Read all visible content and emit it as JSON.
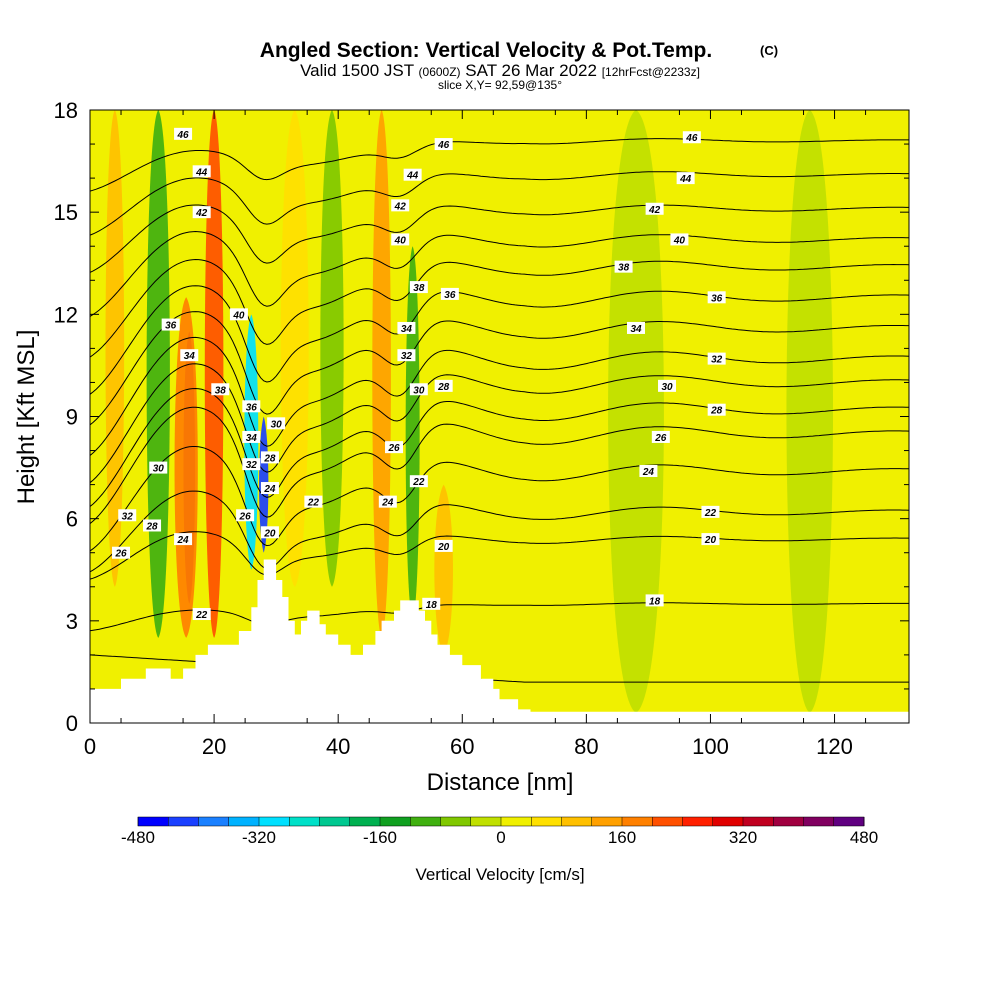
{
  "title": {
    "main": "Angled Section: Vertical Velocity & Pot.Temp.",
    "main_suffix": "(C)",
    "valid_prefix": "Valid 1500 JST",
    "valid_utc": "(0600Z)",
    "valid_date": "SAT 26 Mar 2022",
    "valid_fcst": "[12hrFcst@2233z]",
    "slice": "slice X,Y= 92,59@135°"
  },
  "colors": {
    "frame": "#000000",
    "terrain": "#ffffff",
    "contour": "#000000",
    "colorbar": [
      "#0000ff",
      "#1a40ff",
      "#1a80ff",
      "#00b2ff",
      "#00e0ff",
      "#00e0c8",
      "#00c890",
      "#00b050",
      "#10a020",
      "#40b010",
      "#80c800",
      "#c0e000",
      "#f0f000",
      "#ffe000",
      "#ffc000",
      "#ffa000",
      "#ff8000",
      "#ff5000",
      "#ff2000",
      "#e00000",
      "#c00020",
      "#a00040",
      "#800060",
      "#600080"
    ]
  },
  "chart_data": {
    "type": "heatmap",
    "title": "Angled Section: Vertical Velocity & Pot.Temp.",
    "xlabel": "Distance [nm]",
    "ylabel": "Height [Kft MSL]",
    "xlim": [
      0,
      132
    ],
    "ylim": [
      0,
      18
    ],
    "x_ticks": [
      0,
      20,
      40,
      60,
      80,
      100,
      120
    ],
    "y_ticks": [
      0,
      3,
      6,
      9,
      12,
      15,
      18
    ],
    "colorbar": {
      "label": "Vertical Velocity [cm/s]",
      "ticks": [
        -480,
        -320,
        -160,
        0,
        160,
        320,
        480
      ],
      "min": -480,
      "max": 480,
      "step": 40
    },
    "terrain_kft": [
      [
        0,
        1.0
      ],
      [
        5,
        1.0
      ],
      [
        5,
        1.3
      ],
      [
        9,
        1.3
      ],
      [
        9,
        1.6
      ],
      [
        13,
        1.6
      ],
      [
        13,
        1.3
      ],
      [
        15,
        1.3
      ],
      [
        15,
        1.6
      ],
      [
        17,
        1.6
      ],
      [
        17,
        2.0
      ],
      [
        19,
        2.0
      ],
      [
        19,
        2.3
      ],
      [
        24,
        2.3
      ],
      [
        24,
        2.7
      ],
      [
        26,
        2.7
      ],
      [
        26,
        3.4
      ],
      [
        27,
        3.4
      ],
      [
        27,
        4.2
      ],
      [
        28,
        4.2
      ],
      [
        28,
        4.8
      ],
      [
        30,
        4.8
      ],
      [
        30,
        4.2
      ],
      [
        31,
        4.2
      ],
      [
        31,
        3.7
      ],
      [
        32,
        3.7
      ],
      [
        32,
        3.0
      ],
      [
        33,
        3.0
      ],
      [
        33,
        2.6
      ],
      [
        34,
        2.6
      ],
      [
        34,
        3.0
      ],
      [
        35,
        3.0
      ],
      [
        35,
        3.3
      ],
      [
        37,
        3.3
      ],
      [
        37,
        2.9
      ],
      [
        38,
        2.9
      ],
      [
        38,
        2.6
      ],
      [
        40,
        2.6
      ],
      [
        40,
        2.3
      ],
      [
        42,
        2.3
      ],
      [
        42,
        2.0
      ],
      [
        44,
        2.0
      ],
      [
        44,
        2.3
      ],
      [
        46,
        2.3
      ],
      [
        46,
        2.7
      ],
      [
        47,
        2.7
      ],
      [
        47,
        3.0
      ],
      [
        49,
        3.0
      ],
      [
        49,
        3.3
      ],
      [
        50,
        3.3
      ],
      [
        50,
        3.6
      ],
      [
        53,
        3.6
      ],
      [
        53,
        3.3
      ],
      [
        54,
        3.3
      ],
      [
        54,
        3.0
      ],
      [
        55,
        3.0
      ],
      [
        55,
        2.6
      ],
      [
        56,
        2.6
      ],
      [
        56,
        2.3
      ],
      [
        58,
        2.3
      ],
      [
        58,
        2.0
      ],
      [
        60,
        2.0
      ],
      [
        60,
        1.7
      ],
      [
        63,
        1.7
      ],
      [
        63,
        1.3
      ],
      [
        65,
        1.3
      ],
      [
        65,
        1.0
      ],
      [
        66,
        1.0
      ],
      [
        66,
        0.7
      ],
      [
        69,
        0.7
      ],
      [
        69,
        0.4
      ],
      [
        71,
        0.4
      ],
      [
        71,
        0.33
      ],
      [
        132,
        0.33
      ]
    ],
    "velocity_bands": [
      {
        "x_center": 16,
        "width_nm": 2.5,
        "y_from": 3.5,
        "y_to": 11.5,
        "value_cm_s": 360
      },
      {
        "x_center": 15.5,
        "width_nm": 5,
        "y_from": 2.5,
        "y_to": 12.5,
        "value_cm_s": 160
      },
      {
        "x_center": 20,
        "width_nm": 4,
        "y_from": 2.5,
        "y_to": 18,
        "value_cm_s": 200
      },
      {
        "x_center": 4,
        "width_nm": 4,
        "y_from": 4,
        "y_to": 18,
        "value_cm_s": 80
      },
      {
        "x_center": 11,
        "width_nm": 5,
        "y_from": 2.5,
        "y_to": 18,
        "value_cm_s": -100
      },
      {
        "x_center": 26,
        "width_nm": 3,
        "y_from": 4.5,
        "y_to": 12,
        "value_cm_s": -320
      },
      {
        "x_center": 28,
        "width_nm": 2,
        "y_from": 5,
        "y_to": 9,
        "value_cm_s": -440
      },
      {
        "x_center": 33,
        "width_nm": 6,
        "y_from": 4,
        "y_to": 18,
        "value_cm_s": 60
      },
      {
        "x_center": 39,
        "width_nm": 5,
        "y_from": 4,
        "y_to": 18,
        "value_cm_s": -80
      },
      {
        "x_center": 47,
        "width_nm": 4,
        "y_from": 2.5,
        "y_to": 18,
        "value_cm_s": 120
      },
      {
        "x_center": 52,
        "width_nm": 3,
        "y_from": 3,
        "y_to": 14,
        "value_cm_s": -120
      },
      {
        "x_center": 57,
        "width_nm": 4,
        "y_from": 2,
        "y_to": 7,
        "value_cm_s": 100
      },
      {
        "x_center": 65,
        "width_nm": 8,
        "y_from": 0.5,
        "y_to": 18,
        "value_cm_s": 20
      },
      {
        "x_center": 88,
        "width_nm": 12,
        "y_from": 0.3,
        "y_to": 18,
        "value_cm_s": -20
      },
      {
        "x_center": 104,
        "width_nm": 3,
        "y_from": 0.3,
        "y_to": 18,
        "value_cm_s": 20
      },
      {
        "x_center": 116,
        "width_nm": 10,
        "y_from": 0.3,
        "y_to": 18,
        "value_cm_s": -20
      }
    ],
    "isentropes": [
      {
        "theta": 16,
        "base_kft": 2.0,
        "far_kft": 1.2,
        "amp": 0.0,
        "show_label": false
      },
      {
        "theta": 18,
        "base_kft": 3.0,
        "far_kft": 3.5,
        "amp": 0.3,
        "labels": [
          {
            "x": 55,
            "y": 3.5
          },
          {
            "x": 91,
            "y": 3.6
          }
        ]
      },
      {
        "theta": 20,
        "base_kft": 5.0,
        "far_kft": 5.4,
        "amp": 0.8,
        "labels": [
          {
            "x": 29,
            "y": 5.6
          },
          {
            "x": 57,
            "y": 5.2
          },
          {
            "x": 100,
            "y": 5.4
          }
        ]
      },
      {
        "theta": 22,
        "base_kft": 5.8,
        "far_kft": 6.2,
        "amp": 1.4,
        "labels": [
          {
            "x": 18,
            "y": 3.2
          },
          {
            "x": 36,
            "y": 6.5
          },
          {
            "x": 53,
            "y": 7.1
          },
          {
            "x": 100,
            "y": 6.2
          }
        ]
      },
      {
        "theta": 24,
        "base_kft": 6.8,
        "far_kft": 7.4,
        "amp": 1.8,
        "labels": [
          {
            "x": 15,
            "y": 5.4
          },
          {
            "x": 29,
            "y": 6.9
          },
          {
            "x": 48,
            "y": 6.5
          },
          {
            "x": 90,
            "y": 7.4
          }
        ]
      },
      {
        "theta": 26,
        "base_kft": 7.8,
        "far_kft": 8.5,
        "amp": 2.0,
        "labels": [
          {
            "x": 5,
            "y": 5.0
          },
          {
            "x": 25,
            "y": 6.1
          },
          {
            "x": 49,
            "y": 8.1
          },
          {
            "x": 92,
            "y": 8.4
          }
        ]
      },
      {
        "theta": 28,
        "base_kft": 8.3,
        "far_kft": 9.2,
        "amp": 2.0,
        "labels": [
          {
            "x": 10,
            "y": 5.8
          },
          {
            "x": 29,
            "y": 7.8
          },
          {
            "x": 57,
            "y": 9.9
          },
          {
            "x": 101,
            "y": 9.2
          }
        ]
      },
      {
        "theta": 30,
        "base_kft": 9.0,
        "far_kft": 10.0,
        "amp": 2.0,
        "labels": [
          {
            "x": 11,
            "y": 7.5
          },
          {
            "x": 30,
            "y": 8.8
          },
          {
            "x": 53,
            "y": 9.8
          },
          {
            "x": 93,
            "y": 9.9
          }
        ]
      },
      {
        "theta": 32,
        "base_kft": 9.8,
        "far_kft": 10.7,
        "amp": 2.0,
        "labels": [
          {
            "x": 6,
            "y": 6.1
          },
          {
            "x": 26,
            "y": 7.6
          },
          {
            "x": 51,
            "y": 10.8
          },
          {
            "x": 101,
            "y": 10.7
          }
        ]
      },
      {
        "theta": 34,
        "base_kft": 10.6,
        "far_kft": 11.6,
        "amp": 1.9,
        "labels": [
          {
            "x": 16,
            "y": 10.8
          },
          {
            "x": 26,
            "y": 8.4
          },
          {
            "x": 51,
            "y": 11.6
          },
          {
            "x": 88,
            "y": 11.6
          }
        ]
      },
      {
        "theta": 36,
        "base_kft": 11.4,
        "far_kft": 12.5,
        "amp": 1.8,
        "labels": [
          {
            "x": 13,
            "y": 11.7
          },
          {
            "x": 26,
            "y": 9.3
          },
          {
            "x": 58,
            "y": 12.6
          },
          {
            "x": 101,
            "y": 12.5
          }
        ]
      },
      {
        "theta": 38,
        "base_kft": 12.3,
        "far_kft": 13.4,
        "amp": 1.6,
        "labels": [
          {
            "x": 21,
            "y": 9.8
          },
          {
            "x": 53,
            "y": 12.8
          },
          {
            "x": 86,
            "y": 13.4
          }
        ]
      },
      {
        "theta": 40,
        "base_kft": 13.3,
        "far_kft": 14.2,
        "amp": 1.4,
        "labels": [
          {
            "x": 24,
            "y": 12.0
          },
          {
            "x": 50,
            "y": 14.2
          },
          {
            "x": 95,
            "y": 14.2
          }
        ]
      },
      {
        "theta": 42,
        "base_kft": 14.3,
        "far_kft": 15.1,
        "amp": 1.1,
        "labels": [
          {
            "x": 18,
            "y": 15.0
          },
          {
            "x": 50,
            "y": 15.2
          },
          {
            "x": 91,
            "y": 15.1
          }
        ]
      },
      {
        "theta": 44,
        "base_kft": 15.2,
        "far_kft": 16.1,
        "amp": 0.9,
        "labels": [
          {
            "x": 18,
            "y": 16.2
          },
          {
            "x": 52,
            "y": 16.1
          },
          {
            "x": 96,
            "y": 16.0
          }
        ]
      },
      {
        "theta": 46,
        "base_kft": 16.2,
        "far_kft": 17.1,
        "amp": 0.6,
        "labels": [
          {
            "x": 15,
            "y": 17.3
          },
          {
            "x": 57,
            "y": 17.0
          },
          {
            "x": 97,
            "y": 17.2
          }
        ]
      }
    ]
  }
}
